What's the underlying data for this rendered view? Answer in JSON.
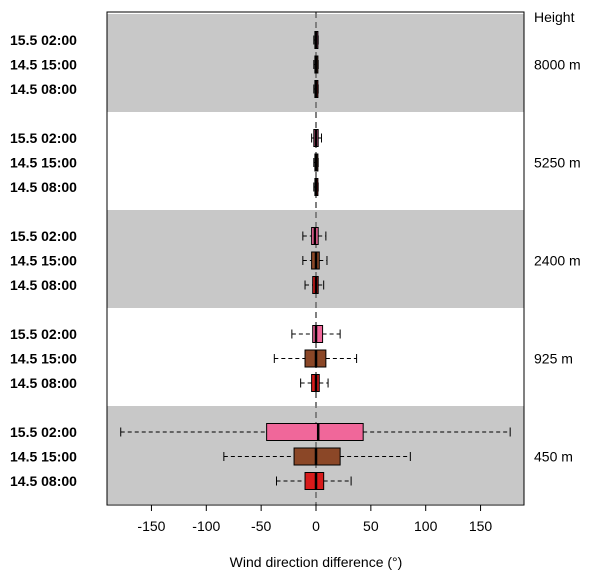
{
  "chart_data": {
    "type": "boxplot",
    "xlabel": "Wind direction difference (°)",
    "xlim": [
      -190,
      190
    ],
    "xticks": [
      -150,
      -100,
      -50,
      0,
      50,
      100,
      150
    ],
    "right_axis_title": "Height",
    "series_colors": {
      "15.5 02:00": "#f0679a",
      "14.5 15:00": "#8b4727",
      "14.5 08:00": "#d81b1b"
    },
    "outline_color": "#000000",
    "band_color": "#c8c8c8",
    "groups": [
      {
        "height": "8000 m",
        "shaded": true,
        "boxes": [
          {
            "label": "15.5 02:00",
            "whisker_low": -2,
            "q1": -1,
            "median": 0,
            "q3": 1,
            "whisker_high": 2
          },
          {
            "label": "14.5 15:00",
            "whisker_low": -2,
            "q1": -1,
            "median": 0,
            "q3": 1,
            "whisker_high": 2
          },
          {
            "label": "14.5 08:00",
            "whisker_low": -2,
            "q1": -1,
            "median": 0,
            "q3": 1,
            "whisker_high": 2
          }
        ]
      },
      {
        "height": "5250 m",
        "shaded": false,
        "boxes": [
          {
            "label": "15.5 02:00",
            "whisker_low": -4,
            "q1": -2,
            "median": 0,
            "q3": 2,
            "whisker_high": 5
          },
          {
            "label": "14.5 15:00",
            "whisker_low": -2,
            "q1": -1,
            "median": 0,
            "q3": 1,
            "whisker_high": 2
          },
          {
            "label": "14.5 08:00",
            "whisker_low": -2,
            "q1": -1,
            "median": 0,
            "q3": 1,
            "whisker_high": 2
          }
        ]
      },
      {
        "height": "2400 m",
        "shaded": true,
        "boxes": [
          {
            "label": "15.5 02:00",
            "whisker_low": -12,
            "q1": -4,
            "median": -1,
            "q3": 2,
            "whisker_high": 9
          },
          {
            "label": "14.5 15:00",
            "whisker_low": -12,
            "q1": -4,
            "median": 0,
            "q3": 3,
            "whisker_high": 10
          },
          {
            "label": "14.5 08:00",
            "whisker_low": -10,
            "q1": -3,
            "median": 0,
            "q3": 2,
            "whisker_high": 7
          }
        ]
      },
      {
        "height": "925 m",
        "shaded": false,
        "boxes": [
          {
            "label": "15.5 02:00",
            "whisker_low": -22,
            "q1": -3,
            "median": 0,
            "q3": 6,
            "whisker_high": 22
          },
          {
            "label": "14.5 15:00",
            "whisker_low": -38,
            "q1": -10,
            "median": 0,
            "q3": 9,
            "whisker_high": 37
          },
          {
            "label": "14.5 08:00",
            "whisker_low": -14,
            "q1": -4,
            "median": 0,
            "q3": 3,
            "whisker_high": 11
          }
        ]
      },
      {
        "height": "450 m",
        "shaded": true,
        "boxes": [
          {
            "label": "15.5 02:00",
            "whisker_low": -178,
            "q1": -45,
            "median": 2,
            "q3": 43,
            "whisker_high": 177
          },
          {
            "label": "14.5 15:00",
            "whisker_low": -84,
            "q1": -20,
            "median": 0,
            "q3": 22,
            "whisker_high": 86
          },
          {
            "label": "14.5 08:00",
            "whisker_low": -36,
            "q1": -10,
            "median": 0,
            "q3": 7,
            "whisker_high": 32
          }
        ]
      }
    ]
  }
}
